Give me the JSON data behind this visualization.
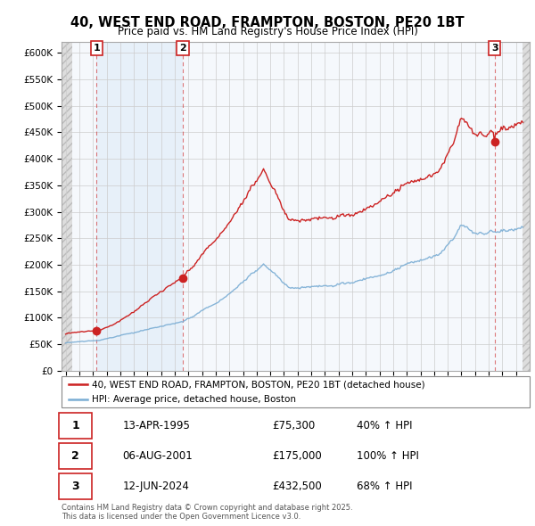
{
  "title": "40, WEST END ROAD, FRAMPTON, BOSTON, PE20 1BT",
  "subtitle": "Price paid vs. HM Land Registry's House Price Index (HPI)",
  "ylim": [
    0,
    620000
  ],
  "yticks": [
    0,
    50000,
    100000,
    150000,
    200000,
    250000,
    300000,
    350000,
    400000,
    450000,
    500000,
    550000,
    600000
  ],
  "xlim_start": 1992.7,
  "xlim_end": 2027.0,
  "hpi_color": "#7aadd4",
  "price_color": "#cc2222",
  "sales": [
    {
      "num": 1,
      "date_decimal": 1995.278,
      "price": 75300,
      "label": "13-APR-1995",
      "price_str": "£75,300",
      "hpi_str": "40% ↑ HPI"
    },
    {
      "num": 2,
      "date_decimal": 2001.589,
      "price": 175000,
      "label": "06-AUG-2001",
      "price_str": "£175,000",
      "hpi_str": "100% ↑ HPI"
    },
    {
      "num": 3,
      "date_decimal": 2024.44,
      "price": 432500,
      "label": "12-JUN-2024",
      "price_str": "£432,500",
      "hpi_str": "68% ↑ HPI"
    }
  ],
  "footer": "Contains HM Land Registry data © Crown copyright and database right 2025.\nThis data is licensed under the Open Government Licence v3.0.",
  "legend_price": "40, WEST END ROAD, FRAMPTON, BOSTON, PE20 1BT (detached house)",
  "legend_hpi": "HPI: Average price, detached house, Boston"
}
